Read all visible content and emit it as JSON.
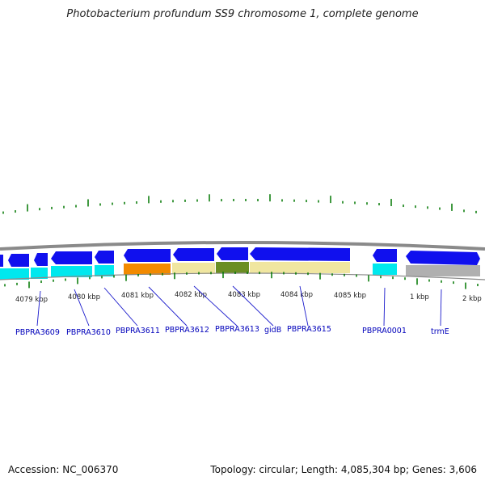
{
  "header": {
    "title": "Photobacterium profundum SS9 chromosome 1, complete genome"
  },
  "footer": {
    "accession": "Accession: NC_006370",
    "stats": "Topology: circular; Length: 4,085,304 bp; Genes: 3,606"
  },
  "colors": {
    "gene_blue": "#1010ee",
    "cyan": "#00e8ee",
    "orange": "#f28a00",
    "khaki": "#f0e6a0",
    "olive": "#6b8e23",
    "gray": "#b0b0b0",
    "tick_green": "#007700",
    "label_blue": "#0000bb"
  },
  "kbp_labels": [
    {
      "id": "k4079",
      "text": "4079 kbp"
    },
    {
      "id": "k4080",
      "text": "4080 kbp"
    },
    {
      "id": "k4081",
      "text": "4081 kbp"
    },
    {
      "id": "k4082",
      "text": "4082 kbp"
    },
    {
      "id": "k4083",
      "text": "4083 kbp"
    },
    {
      "id": "k4084",
      "text": "4084 kbp"
    },
    {
      "id": "k4085",
      "text": "4085 kbp"
    },
    {
      "id": "k1",
      "text": "1 kbp"
    },
    {
      "id": "k2",
      "text": "2 kbp"
    }
  ],
  "gene_labels": [
    {
      "id": "PBPRA3609",
      "text": "PBPRA3609"
    },
    {
      "id": "PBPRA3610",
      "text": "PBPRA3610"
    },
    {
      "id": "PBPRA3611",
      "text": "PBPRA3611"
    },
    {
      "id": "PBPRA3612",
      "text": "PBPRA3612"
    },
    {
      "id": "PBPRA3613",
      "text": "PBPRA3613"
    },
    {
      "id": "gidB",
      "text": "gidB"
    },
    {
      "id": "PBPRA3615",
      "text": "PBPRA3615"
    },
    {
      "id": "PBPRA0001",
      "text": "PBPRA0001"
    },
    {
      "id": "trmE",
      "text": "trmE"
    }
  ]
}
